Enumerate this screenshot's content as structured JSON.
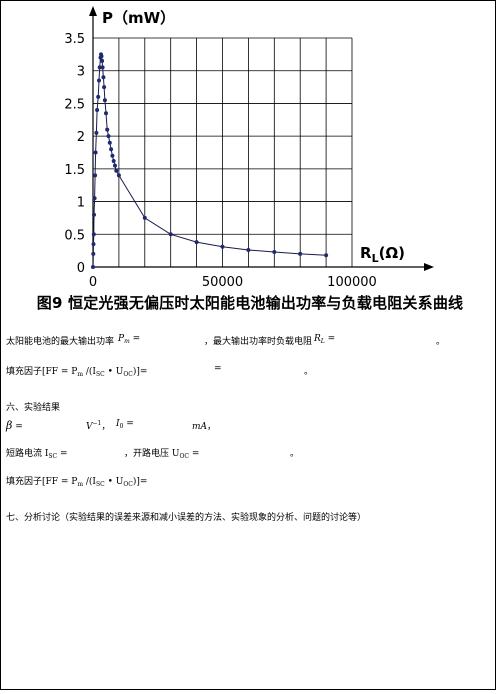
{
  "chart_data": {
    "type": "line",
    "ylabel": "P（mW）",
    "xlabel": "RL(Ω)",
    "xlim": [
      0,
      100000
    ],
    "ylim": [
      0,
      3.5
    ],
    "x_ticks": [
      "0",
      "50000",
      "100000"
    ],
    "y_ticks": [
      "0",
      "0.5",
      "1",
      "1.5",
      "2",
      "2.5",
      "3",
      "3.5"
    ],
    "grid": true,
    "series": [
      {
        "x": [
          0,
          100,
          200,
          300,
          400,
          600,
          800,
          1000,
          1300,
          1600,
          2000,
          2300,
          2600,
          2900,
          3100,
          3300,
          3500,
          3700,
          4000,
          4300,
          4600,
          5000,
          5500,
          6000,
          6500,
          7000,
          7500,
          8000,
          8500,
          9000,
          10000,
          20000,
          30000,
          40000,
          50000,
          60000,
          70000,
          80000,
          90000
        ],
        "y": [
          0,
          0.2,
          0.35,
          0.5,
          0.8,
          1.05,
          1.4,
          1.75,
          2.05,
          2.4,
          2.6,
          2.85,
          3.05,
          3.2,
          3.25,
          3.22,
          3.15,
          3.05,
          2.9,
          2.75,
          2.55,
          2.35,
          2.1,
          2.0,
          1.9,
          1.8,
          1.7,
          1.62,
          1.55,
          1.47,
          1.4,
          0.75,
          0.5,
          0.38,
          0.31,
          0.26,
          0.23,
          0.2,
          0.18
        ]
      }
    ]
  },
  "caption": "图9 恒定光强无偏压时太阳能电池输出功率与负载电阻关系曲线",
  "line1": {
    "text_a": "太阳能电池的最大输出功率",
    "pm": "P",
    "pm_sub": "m",
    "eq_a": " =",
    "text_b": "，最大输出功率时负载电阻",
    "rl": "R",
    "rl_sub": "L",
    "eq_b": " =",
    "end": "。"
  },
  "ff1": {
    "a": "填充因子[FF = P",
    "sub_m": "m",
    "b": " /(I",
    "sub_sc": "SC",
    "c": " • U",
    "sub_oc": "OC",
    "d": ")]=",
    "eq": "=",
    "end": "。"
  },
  "section6": "六、实验结果",
  "beta_line": {
    "beta": "β",
    "eq": " =",
    "unit_v": "V",
    "unit_v_sup": "−1",
    "sep": "，",
    "i0": "I",
    "i0_sub": "0",
    "eq2": " =",
    "unit_ma": "mA",
    "end": "，"
  },
  "isc_line": {
    "a": "短路电流 I",
    "sub_sc": "SC",
    "eq": " =",
    "b": "，开路电压 U",
    "sub_oc": "OC",
    "eq2": " =",
    "end": "。"
  },
  "ff2": {
    "a": "填充因子[FF = P",
    "sub_m": "m",
    "b": " /(I",
    "sub_sc": "SC",
    "c": " • U",
    "sub_oc": "OC",
    "d": ")]="
  },
  "section7": "七、分析讨论（实验结果的误差来源和减小误差的方法、实验现象的分析、问题的讨论等）"
}
